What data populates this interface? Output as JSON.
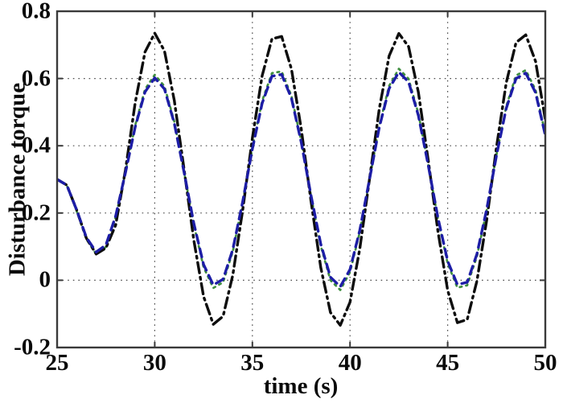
{
  "figure": {
    "background_color": "#ffffff",
    "frame_color": "#3a3a3a",
    "grid_color": "#4c4c4c",
    "text_color": "#0a0a0a"
  },
  "chart_data": {
    "type": "line",
    "title": "",
    "xlabel": "time (s)",
    "ylabel": "Disturbance torque",
    "xlim": [
      25,
      50
    ],
    "ylim": [
      -0.2,
      0.8
    ],
    "x_ticks": [
      25,
      30,
      35,
      40,
      45,
      50
    ],
    "x_tick_labels": [
      "25",
      "30",
      "35",
      "40",
      "45",
      "50"
    ],
    "y_ticks": [
      -0.2,
      0,
      0.2,
      0.4,
      0.6,
      0.8
    ],
    "y_tick_labels": [
      "-0.2",
      "0",
      "0.2",
      "0.4",
      "0.6",
      "0.8"
    ],
    "grid": true,
    "grid_style": "dotted",
    "legend": "none",
    "x": [
      25,
      25.5,
      26,
      26.5,
      27,
      27.5,
      28,
      28.5,
      29,
      29.5,
      30,
      30.5,
      31,
      31.5,
      32,
      32.5,
      33,
      33.5,
      34,
      34.5,
      35,
      35.5,
      36,
      36.5,
      37,
      37.5,
      38,
      38.5,
      39,
      39.5,
      40,
      40.5,
      41,
      41.5,
      42,
      42.5,
      43,
      43.5,
      44,
      44.5,
      45,
      45.5,
      46,
      46.5,
      47,
      47.5,
      48,
      48.5,
      49,
      49.5,
      50
    ],
    "series": [
      {
        "name": "green-dotted-curve",
        "style": "dotted",
        "color": "#3e8e3e",
        "width": 2.7,
        "values": [
          0.3,
          0.282,
          0.206,
          0.122,
          0.078,
          0.099,
          0.188,
          0.321,
          0.461,
          0.568,
          0.611,
          0.577,
          0.472,
          0.323,
          0.165,
          0.039,
          -0.023,
          -0.006,
          0.086,
          0.231,
          0.394,
          0.533,
          0.616,
          0.621,
          0.548,
          0.414,
          0.252,
          0.102,
          0.0,
          -0.029,
          0.024,
          0.143,
          0.301,
          0.46,
          0.578,
          0.629,
          0.599,
          0.496,
          0.345,
          0.183,
          0.05,
          -0.022,
          -0.015,
          0.071,
          0.209,
          0.373,
          0.517,
          0.609,
          0.625,
          0.566,
          0.435
        ]
      },
      {
        "name": "black-dash-dot-curve",
        "style": "dash-dot",
        "color": "#0d0d0d",
        "width": 3.4,
        "values": [
          0.3,
          0.283,
          0.209,
          0.125,
          0.078,
          0.096,
          0.164,
          0.328,
          0.528,
          0.679,
          0.735,
          0.682,
          0.535,
          0.331,
          0.119,
          -0.048,
          -0.131,
          -0.107,
          0.016,
          0.208,
          0.423,
          0.608,
          0.718,
          0.725,
          0.628,
          0.451,
          0.237,
          0.038,
          -0.096,
          -0.134,
          -0.065,
          0.093,
          0.302,
          0.51,
          0.667,
          0.734,
          0.695,
          0.559,
          0.359,
          0.146,
          -0.03,
          -0.126,
          -0.117,
          -0.002,
          0.18,
          0.396,
          0.587,
          0.707,
          0.73,
          0.651,
          0.478
        ]
      },
      {
        "name": "blue-dashed-curve",
        "style": "dashed",
        "color": "#1d1da6",
        "width": 3.4,
        "values": [
          0.3,
          0.283,
          0.209,
          0.127,
          0.084,
          0.105,
          0.191,
          0.32,
          0.456,
          0.56,
          0.602,
          0.569,
          0.467,
          0.322,
          0.169,
          0.047,
          -0.014,
          0.003,
          0.092,
          0.233,
          0.391,
          0.526,
          0.607,
          0.612,
          0.541,
          0.411,
          0.253,
          0.108,
          0.009,
          -0.019,
          0.032,
          0.148,
          0.301,
          0.455,
          0.57,
          0.619,
          0.59,
          0.49,
          0.344,
          0.186,
          0.057,
          -0.013,
          -0.006,
          0.078,
          0.212,
          0.371,
          0.511,
          0.6,
          0.616,
          0.558,
          0.431
        ]
      }
    ]
  }
}
